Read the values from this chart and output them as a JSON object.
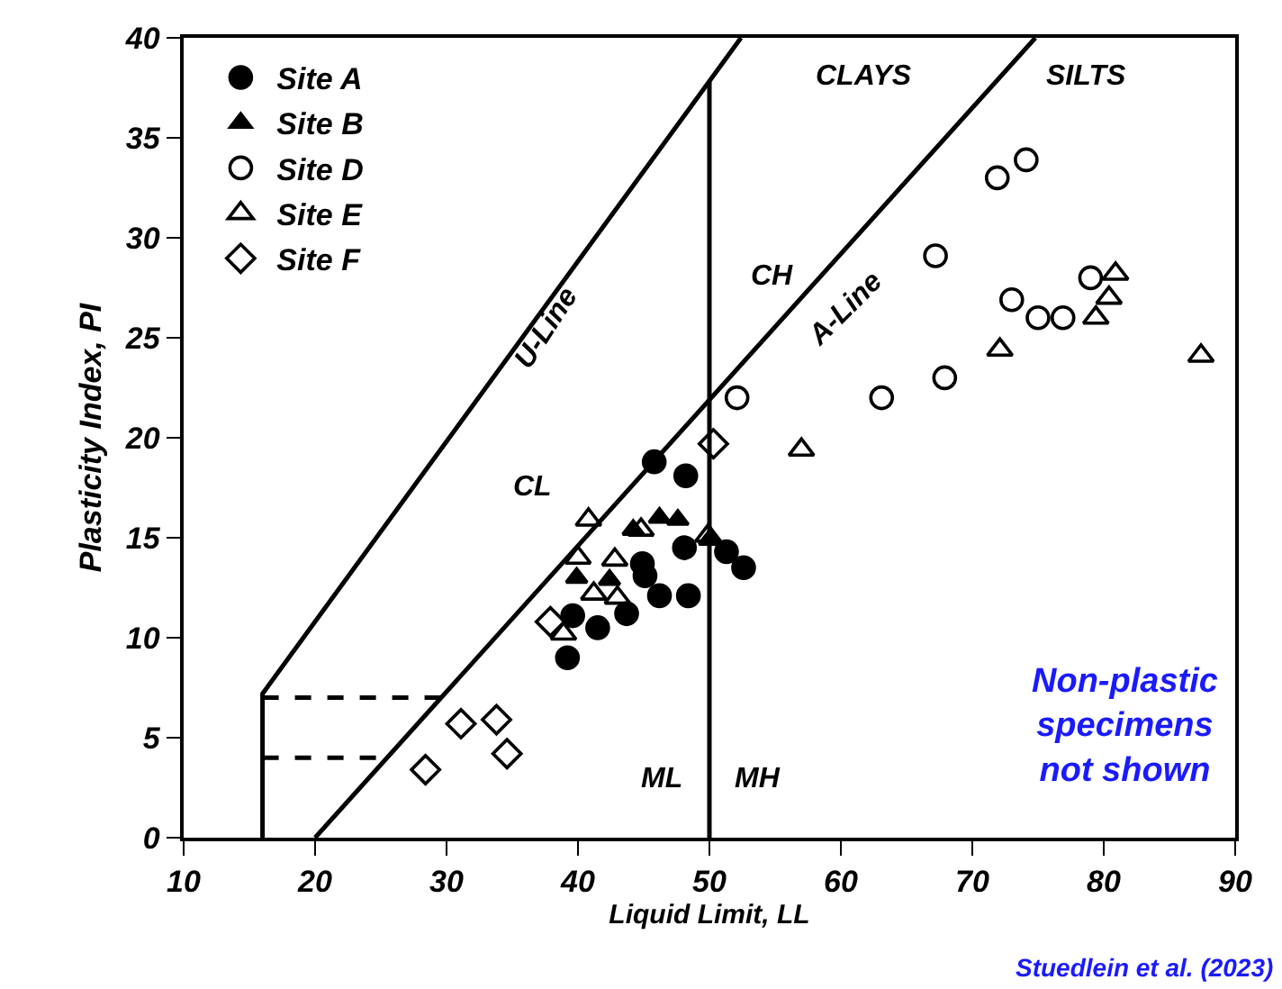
{
  "chart_data": {
    "type": "scatter",
    "xlabel": "Liquid Limit, LL",
    "ylabel": "Plasticity Index, PI",
    "xlim": [
      10,
      90
    ],
    "xticks": [
      10,
      20,
      30,
      40,
      50,
      60,
      70,
      80,
      90
    ],
    "ylim": [
      0,
      40
    ],
    "yticks": [
      0,
      5,
      10,
      15,
      20,
      25,
      30,
      35,
      40
    ],
    "legend": "top left",
    "series": [
      {
        "name": "Site A",
        "color": "#000000",
        "marker": "circle",
        "x": [
          45.8,
          48.2,
          39.2,
          41.5,
          43.7,
          46.2,
          48.4,
          44.9,
          45.1,
          48.1,
          51.3,
          52.6,
          39.6
        ],
        "values": [
          18.8,
          18.1,
          9.0,
          10.5,
          11.2,
          12.1,
          12.1,
          13.7,
          13.1,
          14.5,
          14.3,
          13.5,
          11.1
        ]
      },
      {
        "name": "Site B",
        "color": "#000000",
        "marker": "triangle",
        "x": [
          39.9,
          42.4,
          44.2,
          46.2,
          47.6,
          50.0
        ],
        "values": [
          13.0,
          12.9,
          15.4,
          16.0,
          15.9,
          14.9
        ]
      },
      {
        "name": "Site D",
        "color": "#000000",
        "marker": "circle-open",
        "x": [
          52.1,
          63.1,
          67.9,
          67.2,
          71.9,
          74.1,
          73.0,
          75.0,
          76.9,
          79.0
        ],
        "values": [
          22.0,
          22.0,
          23.0,
          29.1,
          33.0,
          33.9,
          26.9,
          26.0,
          26.0,
          28.0
        ]
      },
      {
        "name": "Site E",
        "color": "#000000",
        "marker": "triangle-open",
        "x": [
          40.8,
          42.8,
          44.8,
          41.2,
          43.0,
          38.9,
          49.9,
          40.0,
          57.0,
          72.1,
          80.9,
          80.4,
          79.4,
          87.4
        ],
        "values": [
          15.9,
          13.9,
          15.4,
          12.2,
          12.0,
          10.2,
          15.1,
          14.0,
          19.4,
          24.4,
          28.2,
          27.0,
          26.0,
          24.1
        ]
      },
      {
        "name": "Site F",
        "color": "#000000",
        "marker": "diamond-open",
        "x": [
          50.3,
          37.9,
          28.4,
          31.1,
          33.8,
          34.6
        ],
        "values": [
          19.7,
          10.8,
          3.4,
          5.7,
          5.9,
          4.2
        ]
      },
      {
        "type": "line",
        "color": "#000000",
        "marker": "none",
        "line_style": "solid",
        "x": [
          16,
          16,
          52.4
        ],
        "values": [
          0,
          7.2,
          40
        ]
      },
      {
        "type": "line",
        "color": "#000000",
        "marker": "none",
        "line_style": "solid",
        "x": [
          20,
          74.8
        ],
        "values": [
          0,
          40
        ]
      },
      {
        "type": "line",
        "color": "#000000",
        "marker": "none",
        "line_style": "solid",
        "x": [
          50,
          50
        ],
        "values": [
          0,
          37.8
        ]
      },
      {
        "type": "line",
        "color": "#000000",
        "marker": "none",
        "line_style": "dashed",
        "x": [
          16,
          29.6
        ],
        "values": [
          7,
          7
        ]
      },
      {
        "type": "line",
        "color": "#000000",
        "marker": "none",
        "line_style": "dashed",
        "x": [
          16,
          25.5
        ],
        "values": [
          4,
          4
        ]
      }
    ],
    "annotations": [
      "U-Line",
      "A-Line",
      "CL",
      "CH",
      "ML",
      "MH",
      "CLAYS",
      "SILTS",
      "Non-plastic\nspecimens\nnot shown",
      "Stuedlein et al. (2023)"
    ]
  }
}
